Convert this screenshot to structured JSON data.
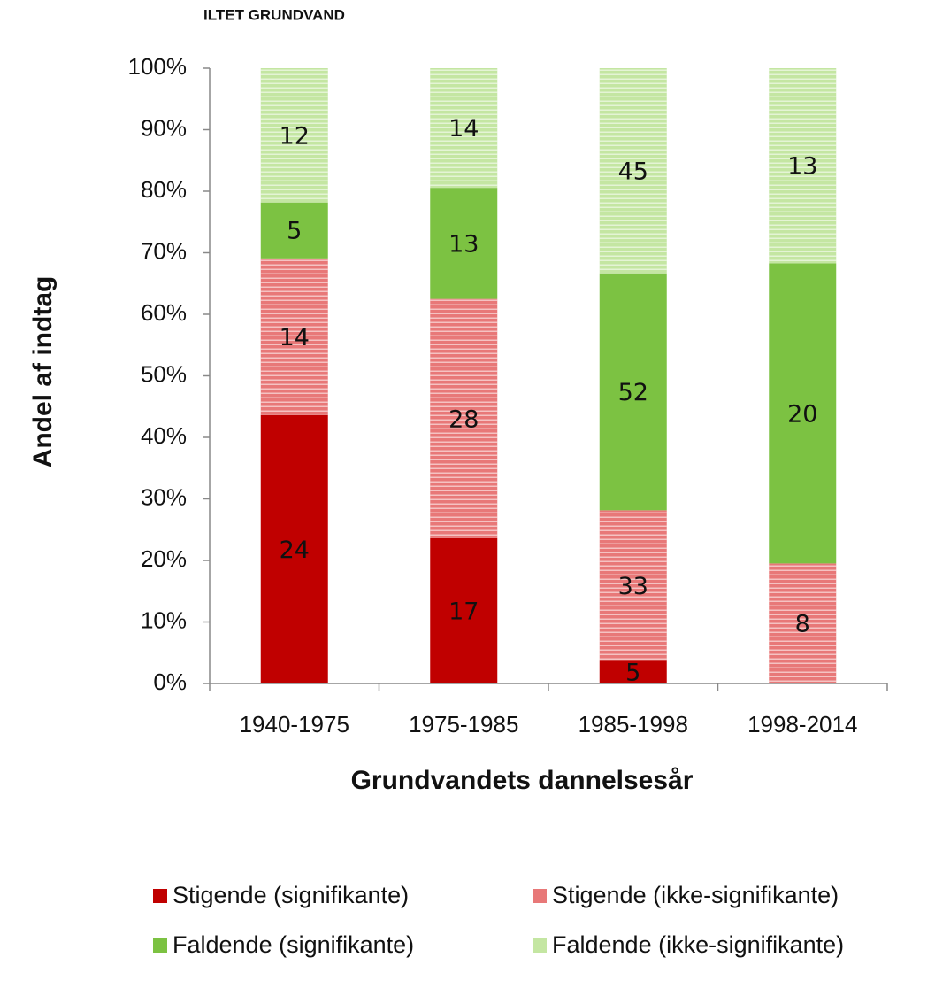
{
  "chart_data": {
    "type": "bar",
    "stacked": "percent",
    "title": "ILTET GRUNDVAND",
    "xlabel": "Grundvandets dannelsesår",
    "ylabel": "Andel af indtag",
    "categories": [
      "1940-1975",
      "1975-1985",
      "1985-1998",
      "1998-2014"
    ],
    "series": [
      {
        "name": "Stigende (signifikante)",
        "color": "#c00000",
        "hatch": false,
        "values": [
          24,
          17,
          5,
          null
        ]
      },
      {
        "name": "Stigende (ikke-signifikante)",
        "color": "#e87878",
        "hatch": true,
        "values": [
          14,
          28,
          33,
          8
        ]
      },
      {
        "name": "Faldende (signifikante)",
        "color": "#7cc242",
        "hatch": false,
        "values": [
          5,
          13,
          52,
          20
        ]
      },
      {
        "name": "Faldende (ikke-signifikante)",
        "color": "#c4e6a2",
        "hatch": true,
        "values": [
          12,
          14,
          45,
          13
        ]
      }
    ],
    "ylim": [
      0,
      100
    ],
    "yticks": [
      {
        "value": 0,
        "label": "0%"
      },
      {
        "value": 10,
        "label": "10%"
      },
      {
        "value": 20,
        "label": "20%"
      },
      {
        "value": 30,
        "label": "30%"
      },
      {
        "value": 40,
        "label": "40%"
      },
      {
        "value": 50,
        "label": "50%"
      },
      {
        "value": 60,
        "label": "60%"
      },
      {
        "value": 70,
        "label": "70%"
      },
      {
        "value": 80,
        "label": "80%"
      },
      {
        "value": 90,
        "label": "90%"
      },
      {
        "value": 100,
        "label": "100%"
      }
    ],
    "grid": false,
    "legend": "bottom"
  }
}
